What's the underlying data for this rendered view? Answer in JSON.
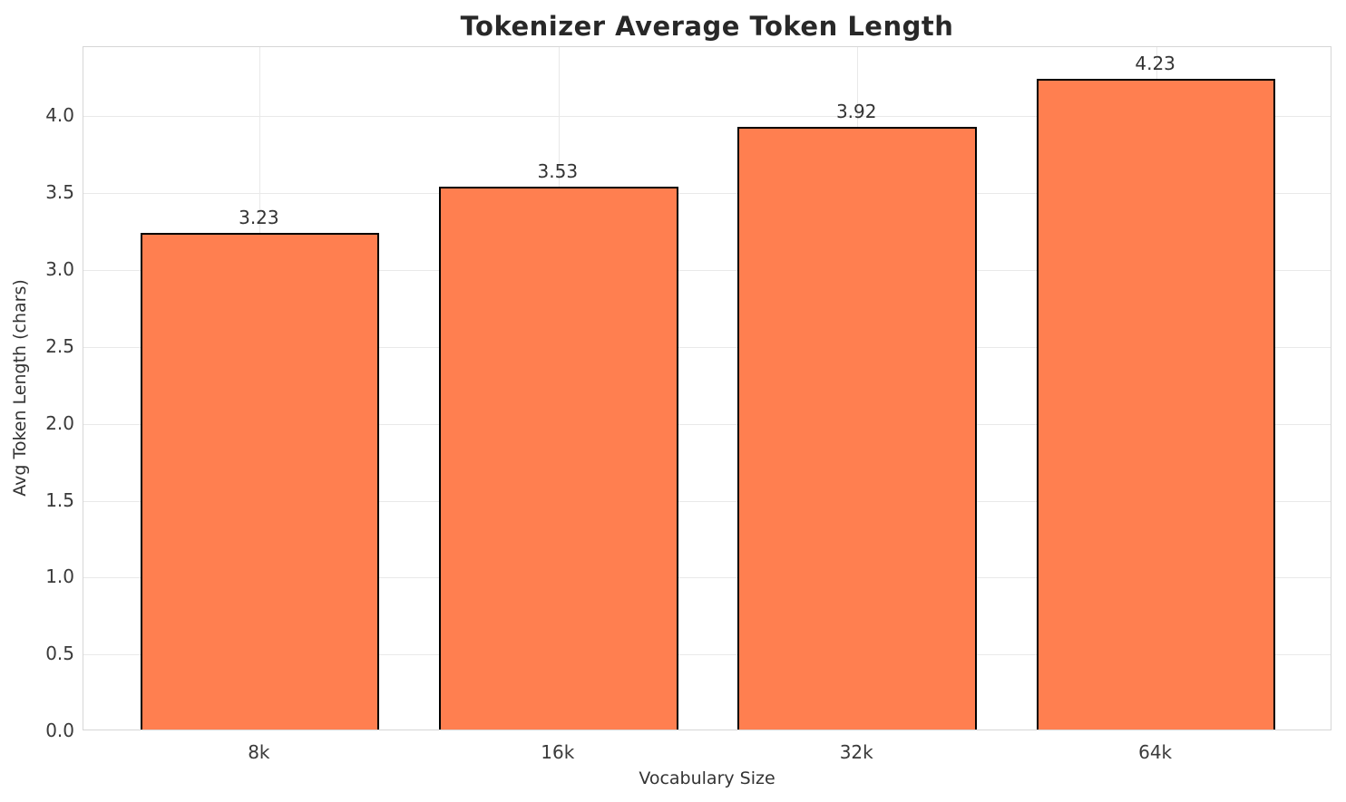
{
  "chart_data": {
    "type": "bar",
    "title": "Tokenizer Average Token Length",
    "xlabel": "Vocabulary Size",
    "ylabel": "Avg Token Length (chars)",
    "categories": [
      "8k",
      "16k",
      "32k",
      "64k"
    ],
    "values": [
      3.23,
      3.53,
      3.92,
      4.23
    ],
    "bar_value_labels": [
      "3.23",
      "3.53",
      "3.92",
      "4.23"
    ],
    "ytick_values": [
      0.0,
      0.5,
      1.0,
      1.5,
      2.0,
      2.5,
      3.0,
      3.5,
      4.0
    ],
    "ytick_labels": [
      "0.0",
      "0.5",
      "1.0",
      "1.5",
      "2.0",
      "2.5",
      "3.0",
      "3.5",
      "4.0"
    ],
    "ylim": [
      0,
      4.45
    ],
    "grid": true,
    "legend_position": "none",
    "colors": {
      "bar_fill": "#FF7F50",
      "bar_edge": "#000000",
      "grid": "#e9e9e9",
      "spine": "#d6d6d6",
      "title_text": "#282828",
      "tick_text": "#3a3a3a",
      "background": "#ffffff"
    }
  }
}
